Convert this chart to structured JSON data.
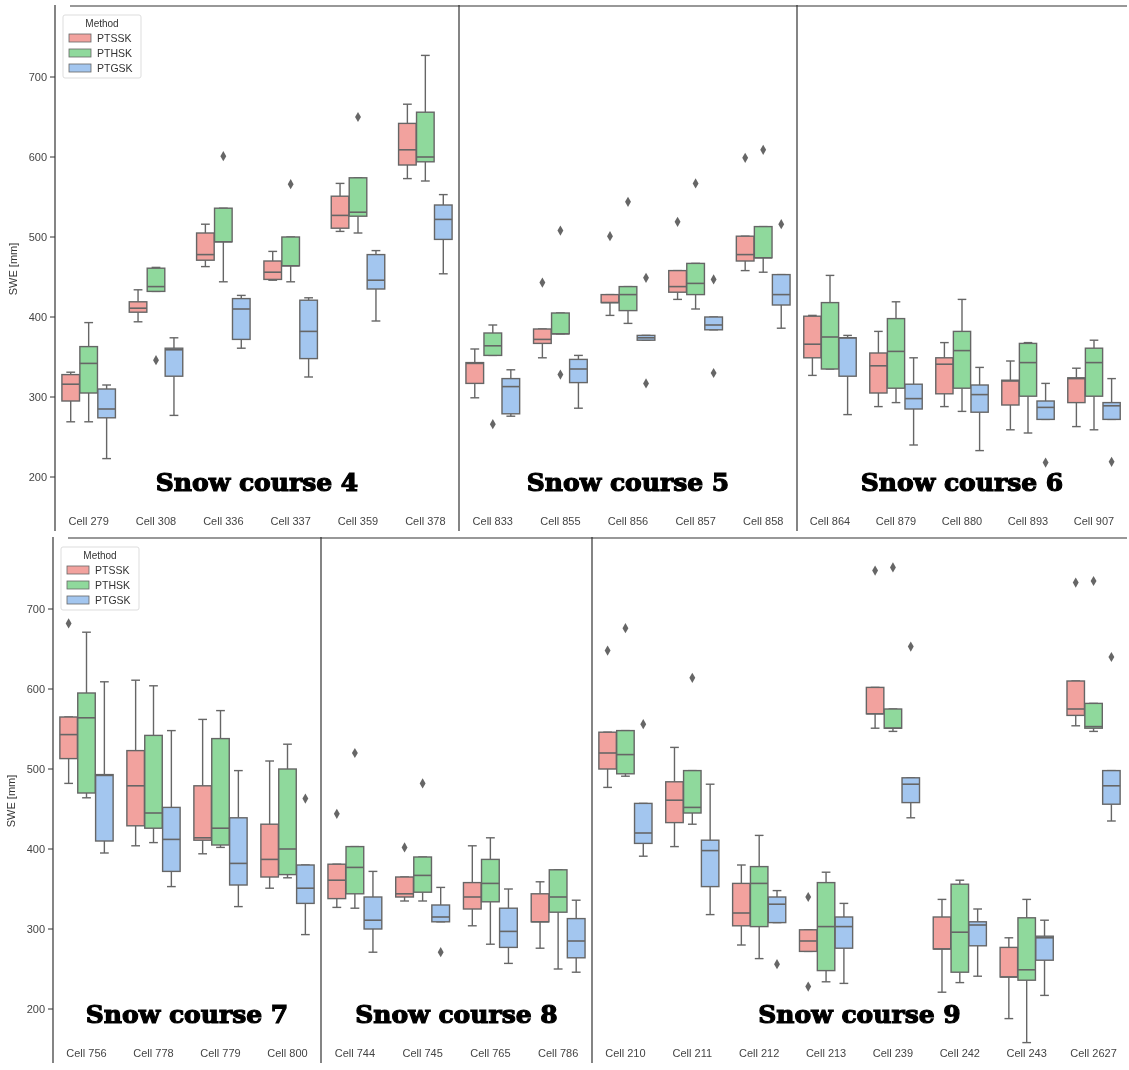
{
  "chart_data": [
    {
      "type": "box",
      "ylabel": "SWE [mm]",
      "ylim": [
        135,
        785
      ],
      "yticks": [
        200,
        300,
        400,
        500,
        600,
        700
      ],
      "legend": "top left",
      "legend_title": "Method",
      "annotations": [
        "Snow course 4"
      ],
      "categories": [
        "Cell 279",
        "Cell 308",
        "Cell 336",
        "Cell 337",
        "Cell 359",
        "Cell 378"
      ],
      "series": [
        {
          "name": "PTSSK",
          "color": "#f2a29e",
          "boxes": [
            {
              "low": 269,
              "q1": 295,
              "median": 316,
              "q3": 328,
              "high": 331
            },
            {
              "low": 394,
              "q1": 406,
              "median": 411,
              "q3": 419,
              "high": 434
            },
            {
              "low": 463,
              "q1": 471,
              "median": 478,
              "q3": 505,
              "high": 516
            },
            {
              "low": 446,
              "q1": 447,
              "median": 456,
              "q3": 470,
              "high": 482
            },
            {
              "low": 507,
              "q1": 511,
              "median": 527,
              "q3": 551,
              "high": 567
            },
            {
              "low": 573,
              "q1": 590,
              "median": 609,
              "q3": 642,
              "high": 666
            }
          ]
        },
        {
          "name": "PTHSK",
          "color": "#8fd99c",
          "boxes": [
            {
              "low": 269,
              "q1": 305,
              "median": 342,
              "q3": 363,
              "high": 393
            },
            {
              "low": 432,
              "q1": 432,
              "median": 438,
              "q3": 461,
              "high": 462,
              "outliers": [
                346
              ]
            },
            {
              "low": 444,
              "q1": 494,
              "median": 494,
              "q3": 536,
              "high": 536,
              "outliers": [
                601
              ]
            },
            {
              "low": 444,
              "q1": 464,
              "median": 464,
              "q3": 500,
              "high": 500,
              "outliers": [
                566
              ]
            },
            {
              "low": 505,
              "q1": 526,
              "median": 531,
              "q3": 574,
              "high": 574,
              "outliers": [
                650
              ]
            },
            {
              "low": 570,
              "q1": 594,
              "median": 600,
              "q3": 656,
              "high": 727
            }
          ]
        },
        {
          "name": "PTGSK",
          "color": "#a3c6ef",
          "boxes": [
            {
              "low": 223,
              "q1": 274,
              "median": 285,
              "q3": 310,
              "high": 315
            },
            {
              "low": 277,
              "q1": 326,
              "median": 359,
              "q3": 361,
              "high": 374
            },
            {
              "low": 361,
              "q1": 372,
              "median": 410,
              "q3": 423,
              "high": 427
            },
            {
              "low": 325,
              "q1": 348,
              "median": 382,
              "q3": 421,
              "high": 424
            },
            {
              "low": 395,
              "q1": 435,
              "median": 446,
              "q3": 478,
              "high": 483
            },
            {
              "low": 454,
              "q1": 497,
              "median": 522,
              "q3": 540,
              "high": 553
            }
          ]
        }
      ]
    },
    {
      "type": "box",
      "ylim": [
        135,
        785
      ],
      "tick_labels": "x",
      "annotations": [
        "Snow course 5"
      ],
      "categories": [
        "Cell 833",
        "Cell 855",
        "Cell 856",
        "Cell 857",
        "Cell 858"
      ],
      "series": [
        {
          "color": "#f2a29e",
          "boxes": [
            {
              "low": 299,
              "q1": 317,
              "median": 342,
              "q3": 343,
              "high": 360
            },
            {
              "low": 349,
              "q1": 367,
              "median": 372,
              "q3": 385,
              "high": 385,
              "outliers": [
                443
              ]
            },
            {
              "low": 402,
              "q1": 418,
              "median": 418,
              "q3": 428,
              "high": 428,
              "outliers": [
                501
              ]
            },
            {
              "low": 422,
              "q1": 431,
              "median": 438,
              "q3": 458,
              "high": 458,
              "outliers": [
                519
              ]
            },
            {
              "low": 458,
              "q1": 470,
              "median": 478,
              "q3": 501,
              "high": 501,
              "outliers": [
                599
              ]
            }
          ]
        },
        {
          "color": "#8fd99c",
          "boxes": [
            {
              "low": 352,
              "q1": 352,
              "median": 364,
              "q3": 380,
              "high": 390,
              "outliers": [
                266
              ]
            },
            {
              "low": 379,
              "q1": 379,
              "median": 379,
              "q3": 405,
              "high": 405,
              "outliers": [
                508,
                328
              ]
            },
            {
              "low": 392,
              "q1": 408,
              "median": 428,
              "q3": 438,
              "high": 438,
              "outliers": [
                544
              ]
            },
            {
              "low": 410,
              "q1": 428,
              "median": 442,
              "q3": 467,
              "high": 467,
              "outliers": [
                567
              ]
            },
            {
              "low": 456,
              "q1": 474,
              "median": 474,
              "q3": 513,
              "high": 513,
              "outliers": [
                609
              ]
            }
          ]
        },
        {
          "color": "#a3c6ef",
          "boxes": [
            {
              "low": 276,
              "q1": 279,
              "median": 313,
              "q3": 323,
              "high": 334
            },
            {
              "low": 286,
              "q1": 318,
              "median": 335,
              "q3": 347,
              "high": 352
            },
            {
              "low": 371,
              "q1": 371,
              "median": 374,
              "q3": 377,
              "high": 377,
              "outliers": [
                449,
                317
              ]
            },
            {
              "low": 384,
              "q1": 384,
              "median": 390,
              "q3": 400,
              "high": 400,
              "outliers": [
                447,
                330
              ]
            },
            {
              "low": 386,
              "q1": 415,
              "median": 428,
              "q3": 453,
              "high": 453,
              "outliers": [
                516
              ]
            }
          ]
        }
      ]
    },
    {
      "type": "box",
      "ylim": [
        135,
        785
      ],
      "tick_labels": "x",
      "annotations": [
        "Snow course 6"
      ],
      "categories": [
        "Cell 864",
        "Cell 879",
        "Cell 880",
        "Cell 893",
        "Cell 907"
      ],
      "series": [
        {
          "color": "#f2a29e",
          "boxes": [
            {
              "low": 327,
              "q1": 349,
              "median": 366,
              "q3": 401,
              "high": 402
            },
            {
              "low": 288,
              "q1": 305,
              "median": 339,
              "q3": 355,
              "high": 382
            },
            {
              "low": 288,
              "q1": 304,
              "median": 341,
              "q3": 349,
              "high": 368
            },
            {
              "low": 259,
              "q1": 290,
              "median": 320,
              "q3": 321,
              "high": 345
            },
            {
              "low": 263,
              "q1": 293,
              "median": 323,
              "q3": 324,
              "high": 336
            }
          ]
        },
        {
          "color": "#8fd99c",
          "boxes": [
            {
              "low": 335,
              "q1": 335,
              "median": 375,
              "q3": 418,
              "high": 452
            },
            {
              "low": 293,
              "q1": 311,
              "median": 357,
              "q3": 398,
              "high": 419
            },
            {
              "low": 282,
              "q1": 311,
              "median": 358,
              "q3": 382,
              "high": 422
            },
            {
              "low": 255,
              "q1": 301,
              "median": 343,
              "q3": 367,
              "high": 368
            },
            {
              "low": 259,
              "q1": 301,
              "median": 343,
              "q3": 361,
              "high": 371
            }
          ]
        },
        {
          "color": "#a3c6ef",
          "boxes": [
            {
              "low": 278,
              "q1": 326,
              "median": 374,
              "q3": 374,
              "high": 377
            },
            {
              "low": 240,
              "q1": 285,
              "median": 298,
              "q3": 316,
              "high": 349
            },
            {
              "low": 233,
              "q1": 281,
              "median": 303,
              "q3": 315,
              "high": 337
            },
            {
              "low": 272,
              "q1": 272,
              "median": 287,
              "q3": 295,
              "high": 317,
              "outliers": [
                218
              ]
            },
            {
              "low": 272,
              "q1": 272,
              "median": 289,
              "q3": 293,
              "high": 323,
              "outliers": [
                219
              ]
            }
          ]
        }
      ]
    },
    {
      "type": "box",
      "ylabel": "SWE [mm]",
      "ylim": [
        135,
        785
      ],
      "yticks": [
        200,
        300,
        400,
        500,
        600,
        700
      ],
      "legend": "top left",
      "legend_title": "Method",
      "annotations": [
        "Snow course 7"
      ],
      "categories": [
        "Cell 756",
        "Cell 778",
        "Cell 779",
        "Cell 800"
      ],
      "series": [
        {
          "name": "PTSSK",
          "color": "#f2a29e",
          "boxes": [
            {
              "low": 482,
              "q1": 513,
              "median": 543,
              "q3": 565,
              "high": 565,
              "outliers": [
                682
              ]
            },
            {
              "low": 404,
              "q1": 429,
              "median": 479,
              "q3": 523,
              "high": 611
            },
            {
              "low": 394,
              "q1": 411,
              "median": 414,
              "q3": 479,
              "high": 562
            },
            {
              "low": 351,
              "q1": 365,
              "median": 387,
              "q3": 431,
              "high": 510
            }
          ]
        },
        {
          "name": "PTHSK",
          "color": "#8fd99c",
          "boxes": [
            {
              "low": 464,
              "q1": 470,
              "median": 564,
              "q3": 595,
              "high": 671
            },
            {
              "low": 408,
              "q1": 426,
              "median": 445,
              "q3": 542,
              "high": 604
            },
            {
              "low": 402,
              "q1": 405,
              "median": 426,
              "q3": 538,
              "high": 573
            },
            {
              "low": 364,
              "q1": 368,
              "median": 400,
              "q3": 500,
              "high": 531
            }
          ]
        },
        {
          "name": "PTGSK",
          "color": "#a3c6ef",
          "boxes": [
            {
              "low": 395,
              "q1": 410,
              "median": 492,
              "q3": 493,
              "high": 609
            },
            {
              "low": 353,
              "q1": 372,
              "median": 412,
              "q3": 452,
              "high": 548
            },
            {
              "low": 328,
              "q1": 355,
              "median": 382,
              "q3": 439,
              "high": 498
            },
            {
              "low": 293,
              "q1": 332,
              "median": 351,
              "q3": 380,
              "high": 380,
              "outliers": [
                463
              ]
            }
          ]
        }
      ]
    },
    {
      "type": "box",
      "ylim": [
        135,
        785
      ],
      "tick_labels": "x",
      "annotations": [
        "Snow course 8"
      ],
      "categories": [
        "Cell 744",
        "Cell 745",
        "Cell 765",
        "Cell 786"
      ],
      "series": [
        {
          "color": "#f2a29e",
          "boxes": [
            {
              "low": 327,
              "q1": 338,
              "median": 361,
              "q3": 381,
              "high": 381,
              "outliers": [
                444
              ]
            },
            {
              "low": 335,
              "q1": 340,
              "median": 344,
              "q3": 365,
              "high": 365,
              "outliers": [
                402
              ]
            },
            {
              "low": 304,
              "q1": 325,
              "median": 340,
              "q3": 358,
              "high": 404
            },
            {
              "low": 276,
              "q1": 309,
              "median": 309,
              "q3": 344,
              "high": 359
            }
          ]
        },
        {
          "color": "#8fd99c",
          "boxes": [
            {
              "low": 326,
              "q1": 344,
              "median": 377,
              "q3": 403,
              "high": 403,
              "outliers": [
                520
              ]
            },
            {
              "low": 335,
              "q1": 346,
              "median": 367,
              "q3": 390,
              "high": 390,
              "outliers": [
                482
              ]
            },
            {
              "low": 281,
              "q1": 334,
              "median": 357,
              "q3": 387,
              "high": 414
            },
            {
              "low": 250,
              "q1": 321,
              "median": 340,
              "q3": 374,
              "high": 374
            }
          ]
        },
        {
          "color": "#a3c6ef",
          "boxes": [
            {
              "low": 271,
              "q1": 300,
              "median": 311,
              "q3": 340,
              "high": 372
            },
            {
              "low": 309,
              "q1": 309,
              "median": 315,
              "q3": 330,
              "high": 352,
              "outliers": [
                271
              ]
            },
            {
              "low": 257,
              "q1": 277,
              "median": 297,
              "q3": 326,
              "high": 350
            },
            {
              "low": 246,
              "q1": 264,
              "median": 285,
              "q3": 313,
              "high": 336
            }
          ]
        }
      ]
    },
    {
      "type": "box",
      "ylim": [
        135,
        785
      ],
      "tick_labels": "x",
      "annotations": [
        "Snow course 9"
      ],
      "categories": [
        "Cell 210",
        "Cell 211",
        "Cell 212",
        "Cell 213",
        "Cell 239",
        "Cell 242",
        "Cell 243",
        "Cell 2627"
      ],
      "series": [
        {
          "color": "#f2a29e",
          "boxes": [
            {
              "low": 477,
              "q1": 500,
              "median": 520,
              "q3": 546,
              "high": 546,
              "outliers": [
                648
              ]
            },
            {
              "low": 403,
              "q1": 433,
              "median": 461,
              "q3": 484,
              "high": 527
            },
            {
              "low": 280,
              "q1": 304,
              "median": 320,
              "q3": 357,
              "high": 380
            },
            {
              "low": 272,
              "q1": 272,
              "median": 285,
              "q3": 299,
              "high": 299,
              "outliers": [
                340,
                228
              ]
            },
            {
              "low": 551,
              "q1": 569,
              "median": 569,
              "q3": 602,
              "high": 602,
              "outliers": [
                748
              ]
            },
            {
              "low": 221,
              "q1": 275,
              "median": 275,
              "q3": 315,
              "high": 337
            },
            {
              "low": 188,
              "q1": 240,
              "median": 240,
              "q3": 277,
              "high": 289
            },
            {
              "low": 554,
              "q1": 567,
              "median": 575,
              "q3": 610,
              "high": 610,
              "outliers": [
                733
              ]
            }
          ]
        },
        {
          "color": "#8fd99c",
          "boxes": [
            {
              "low": 491,
              "q1": 494,
              "median": 518,
              "q3": 548,
              "high": 548,
              "outliers": [
                676
              ]
            },
            {
              "low": 431,
              "q1": 445,
              "median": 452,
              "q3": 498,
              "high": 498,
              "outliers": [
                614
              ]
            },
            {
              "low": 263,
              "q1": 303,
              "median": 357,
              "q3": 378,
              "high": 417
            },
            {
              "low": 234,
              "q1": 248,
              "median": 303,
              "q3": 358,
              "high": 371
            },
            {
              "low": 547,
              "q1": 551,
              "median": 551,
              "q3": 575,
              "high": 575,
              "outliers": [
                752
              ]
            },
            {
              "low": 233,
              "q1": 246,
              "median": 296,
              "q3": 356,
              "high": 361
            },
            {
              "low": 158,
              "q1": 236,
              "median": 249,
              "q3": 314,
              "high": 337
            },
            {
              "low": 547,
              "q1": 551,
              "median": 553,
              "q3": 582,
              "high": 582,
              "outliers": [
                735
              ]
            }
          ]
        },
        {
          "color": "#a3c6ef",
          "boxes": [
            {
              "low": 391,
              "q1": 407,
              "median": 420,
              "q3": 457,
              "high": 457,
              "outliers": [
                556
              ]
            },
            {
              "low": 318,
              "q1": 353,
              "median": 398,
              "q3": 411,
              "high": 481
            },
            {
              "low": 308,
              "q1": 308,
              "median": 331,
              "q3": 340,
              "high": 348,
              "outliers": [
                256
              ]
            },
            {
              "low": 232,
              "q1": 276,
              "median": 303,
              "q3": 315,
              "high": 332
            },
            {
              "low": 439,
              "q1": 458,
              "median": 481,
              "q3": 489,
              "high": 489,
              "outliers": [
                653
              ]
            },
            {
              "low": 241,
              "q1": 279,
              "median": 305,
              "q3": 309,
              "high": 325
            },
            {
              "low": 217,
              "q1": 261,
              "median": 289,
              "q3": 291,
              "high": 311
            },
            {
              "low": 435,
              "q1": 456,
              "median": 479,
              "q3": 498,
              "high": 498,
              "outliers": [
                640
              ]
            }
          ]
        }
      ]
    }
  ]
}
